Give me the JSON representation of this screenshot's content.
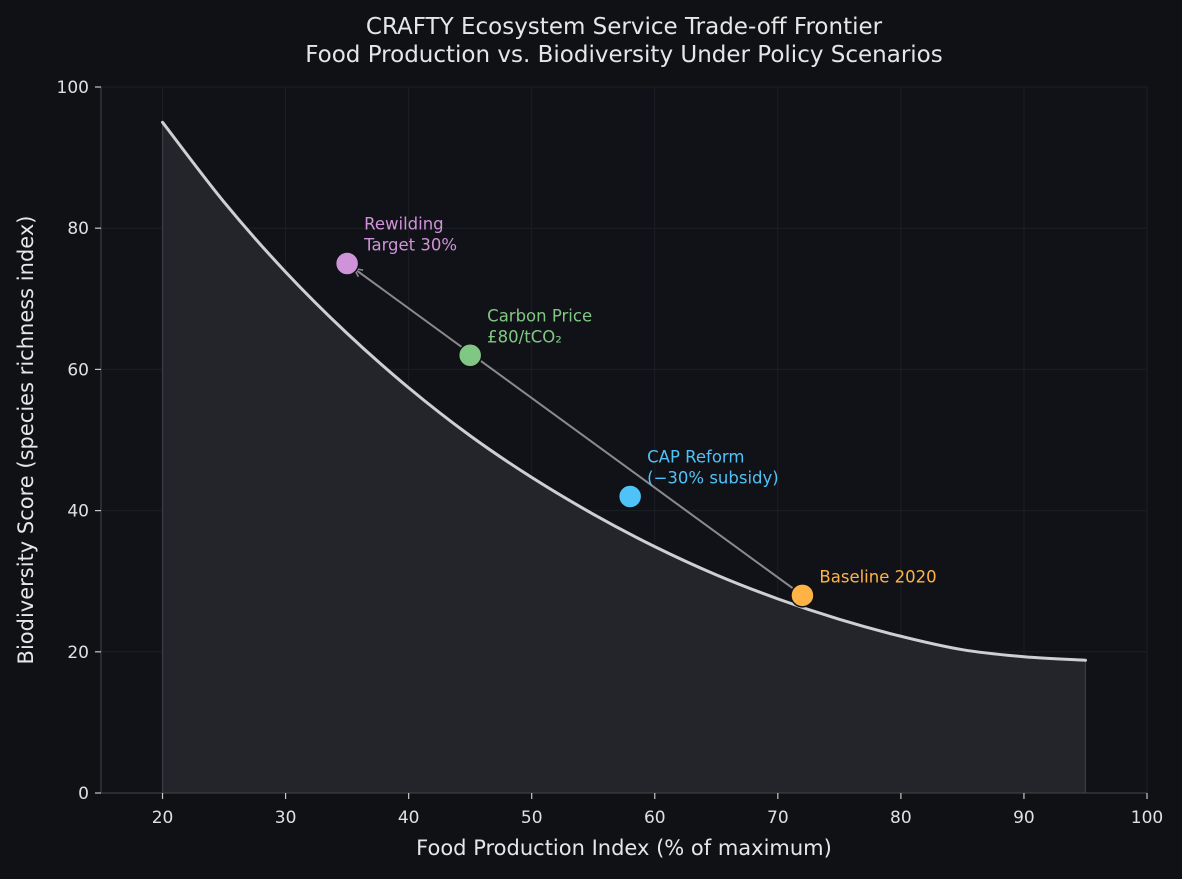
{
  "chart_data": {
    "type": "line",
    "title": "CRAFTY Ecosystem Service Trade-off Frontier",
    "subtitle": "Food Production vs. Biodiversity Under Policy Scenarios",
    "xlabel": "Food Production Index (% of maximum)",
    "ylabel": "Biodiversity Score (species richness index)",
    "xlim": [
      15,
      100
    ],
    "ylim": [
      0,
      100
    ],
    "xticks": [
      20,
      30,
      40,
      50,
      60,
      70,
      80,
      90,
      100
    ],
    "yticks": [
      0,
      20,
      40,
      60,
      80,
      100
    ],
    "grid": true,
    "frontier": {
      "x": [
        20,
        25,
        30,
        35,
        40,
        45,
        50,
        55,
        60,
        65,
        70,
        75,
        80,
        85,
        90,
        95
      ],
      "y": [
        95.0,
        83.7,
        73.8,
        65.1,
        57.4,
        50.6,
        44.7,
        39.5,
        34.9,
        30.9,
        27.5,
        24.6,
        22.2,
        20.3,
        19.3,
        18.8
      ],
      "fill_below": true
    },
    "scenarios": [
      {
        "label_lines": [
          "Baseline 2020"
        ],
        "x": 72,
        "y": 28,
        "color": "#ffb347"
      },
      {
        "label_lines": [
          "CAP Reform",
          "(−30% subsidy)"
        ],
        "x": 58,
        "y": 42,
        "color": "#4fc3f7"
      },
      {
        "label_lines": [
          "Carbon Price",
          "£80/tCO₂"
        ],
        "x": 45,
        "y": 62,
        "color": "#81c784"
      },
      {
        "label_lines": [
          "Rewilding",
          "Target 30%"
        ],
        "x": 35,
        "y": 75,
        "color": "#ce93d8"
      }
    ],
    "arrow": {
      "from": [
        72,
        28
      ],
      "to": [
        35,
        75
      ]
    },
    "colors": {
      "background": "#0f1115",
      "plot_background": "#101217",
      "frontier_line": "#cfcfd3",
      "fill": "#23252a",
      "arrow": "#8a8a8e",
      "grid": "#1c1f25",
      "axis": "#3a3d44",
      "text": "#e0e0e0"
    }
  }
}
